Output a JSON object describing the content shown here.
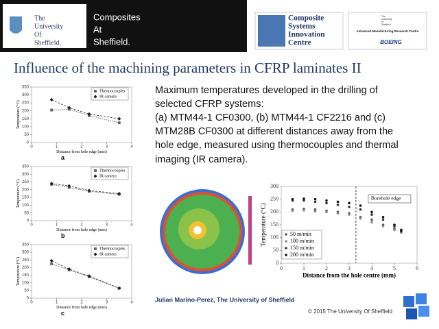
{
  "header": {
    "left_logo": [
      "The",
      "University",
      "Of",
      "Sheffield."
    ],
    "composites": [
      "Composites",
      "At",
      "Sheffield."
    ],
    "centre": [
      "Composite",
      "Systems",
      "Innovation",
      "Centre"
    ],
    "amrc_small": [
      "The",
      "University",
      "of",
      "Sheffield"
    ],
    "amrc": "Advanced Manufacturing Research Centre",
    "boeing": "BOEING"
  },
  "title": "Influence of the machining parameters in CFRP laminates II",
  "description": [
    "Maximum temperatures developed in the drilling of",
    "selected CFRP systems:",
    "(a) MTM44-1 CF0300, (b) MTM44-1 CF2216 and (c)",
    "MTM28B CF0300 at different distances away from the",
    "hole edge, measured using thermocouples and thermal",
    "imaging (IR camera)."
  ],
  "author": "Julian Marino-Perez, The University of Sheffield",
  "copyright": "© 2015 The University Of Sheffield",
  "chart_data": [
    {
      "type": "line",
      "caption": "a",
      "x_label": "Distance from hole edge (mm)",
      "y_label": "Temperature (°C)",
      "x": [
        0.8,
        1.5,
        2.3,
        3.5
      ],
      "xlim": [
        0,
        4
      ],
      "xticks": [
        0,
        1,
        2,
        3,
        4
      ],
      "ylim": [
        0,
        350
      ],
      "yticks": [
        0,
        50,
        100,
        150,
        200,
        250,
        300,
        350
      ],
      "legend": "upper right",
      "series": [
        {
          "name": "Thermocouples",
          "color": "#666666",
          "marker": "square",
          "values": [
            205,
            210,
            170,
            125
          ]
        },
        {
          "name": "IR camera",
          "color": "#222222",
          "marker": "diamond",
          "values": [
            270,
            220,
            180,
            150
          ]
        }
      ]
    },
    {
      "type": "line",
      "caption": "b",
      "x_label": "Distance from hole edge (mm)",
      "y_label": "Temperature (°C)",
      "x": [
        0.8,
        1.5,
        2.3,
        3.5
      ],
      "xlim": [
        0,
        4
      ],
      "xticks": [
        0,
        1,
        2,
        3,
        4
      ],
      "ylim": [
        0,
        350
      ],
      "yticks": [
        0,
        50,
        100,
        150,
        200,
        250,
        300,
        350
      ],
      "legend": "upper right",
      "series": [
        {
          "name": "Thermocouples",
          "color": "#666666",
          "marker": "square",
          "values": [
            235,
            215,
            190,
            170
          ]
        },
        {
          "name": "IR camera",
          "color": "#222222",
          "marker": "diamond",
          "values": [
            240,
            225,
            195,
            175
          ]
        }
      ]
    },
    {
      "type": "line",
      "caption": "c",
      "x_label": "Distance from hole edge (mm)",
      "y_label": "Temperature (°C)",
      "x": [
        0.8,
        1.5,
        2.3,
        3.5
      ],
      "xlim": [
        0,
        4
      ],
      "xticks": [
        0,
        1,
        2,
        3,
        4
      ],
      "ylim": [
        0,
        350
      ],
      "yticks": [
        0,
        50,
        100,
        150,
        200,
        250,
        300,
        350
      ],
      "legend": "upper right",
      "series": [
        {
          "name": "Thermocouples",
          "color": "#666666",
          "marker": "square",
          "values": [
            225,
            185,
            140,
            65
          ]
        },
        {
          "name": "IR camera",
          "color": "#222222",
          "marker": "diamond",
          "values": [
            245,
            190,
            145,
            65
          ]
        }
      ]
    },
    {
      "type": "scatter",
      "x_label": "Distance from the hole centre (mm)",
      "y_label": "Temperature (°C)",
      "x": [
        0.5,
        1,
        1.5,
        2,
        2.5,
        3,
        3.5,
        4,
        4.5,
        5,
        5.3
      ],
      "xlim": [
        0,
        6
      ],
      "xticks": [
        0,
        1,
        2,
        3,
        4,
        5,
        6
      ],
      "ylim": [
        0,
        300
      ],
      "yticks": [
        0,
        50,
        100,
        150,
        200,
        250,
        300
      ],
      "legend": "lower left",
      "annotation": {
        "text": "Borehole edge",
        "x": 3.3
      },
      "series": [
        {
          "name": "50 m/min",
          "color": "#555555",
          "marker": "circle",
          "values": [
            210,
            212,
            210,
            205,
            200,
            195,
            180,
            170,
            150,
            135,
            125
          ]
        },
        {
          "name": "100 m/min",
          "color": "#888888",
          "marker": "circle",
          "values": [
            205,
            207,
            203,
            200,
            195,
            190,
            175,
            160,
            145,
            130,
            120
          ]
        },
        {
          "name": "150 m/min",
          "color": "#333333",
          "marker": "circle",
          "values": [
            245,
            245,
            240,
            235,
            228,
            220,
            210,
            190,
            170,
            145,
            125
          ]
        },
        {
          "name": "200 m/min",
          "color": "#111111",
          "marker": "circle",
          "values": [
            250,
            252,
            250,
            245,
            240,
            235,
            225,
            200,
            180,
            150,
            130
          ]
        }
      ]
    }
  ]
}
